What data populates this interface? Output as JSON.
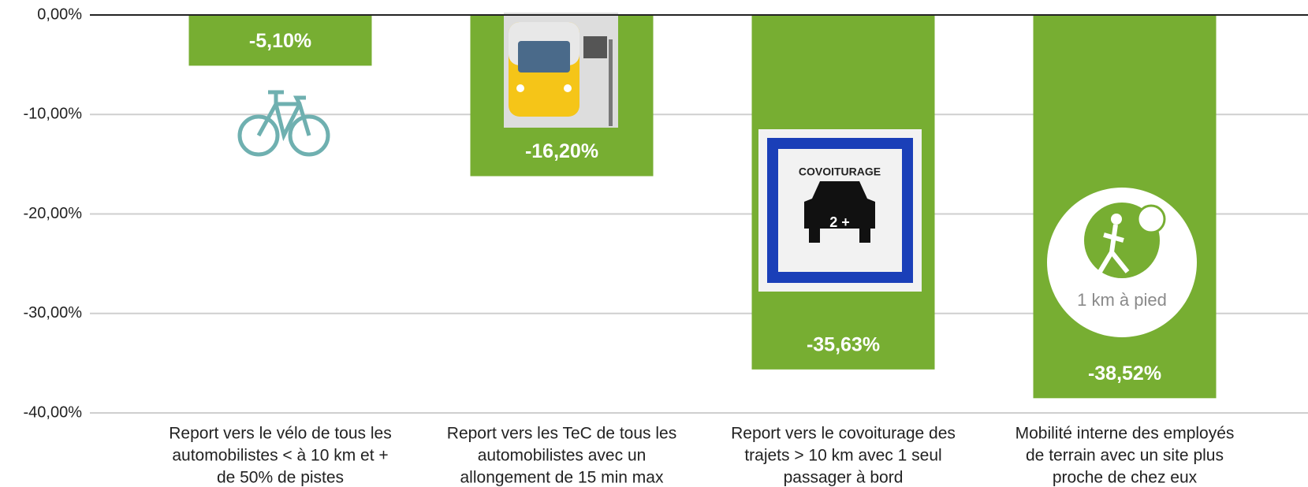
{
  "chart_data": {
    "type": "bar",
    "categories": [
      [
        "Report vers le vélo de tous les",
        "automobilistes < à 10 km et +",
        "de 50% de pistes"
      ],
      [
        "Report vers les TeC de tous les",
        "automobilistes avec un",
        "allongement de 15 min max"
      ],
      [
        "Report vers le covoiturage des",
        "trajets > 10 km avec 1 seul",
        "passager à bord"
      ],
      [
        "Mobilité interne des employés",
        "de terrain avec un site plus",
        "proche de chez eux"
      ]
    ],
    "values": [
      -5.1,
      -16.2,
      -35.63,
      -38.52
    ],
    "value_labels": [
      "-5,10%",
      "-16,20%",
      "-35,63%",
      "-38,52%"
    ],
    "color": "#77ae32",
    "ylim": [
      -40,
      0
    ],
    "yticks": [
      {
        "value": 0,
        "label": "0,00%"
      },
      {
        "value": -10,
        "label": "-10,00%"
      },
      {
        "value": -20,
        "label": "-20,00%"
      },
      {
        "value": -30,
        "label": "-30,00%"
      },
      {
        "value": -40,
        "label": "-40,00%"
      }
    ],
    "grid": true,
    "annotations": [
      "COVOITURAGE",
      "2 +",
      "1 km à pied"
    ]
  }
}
